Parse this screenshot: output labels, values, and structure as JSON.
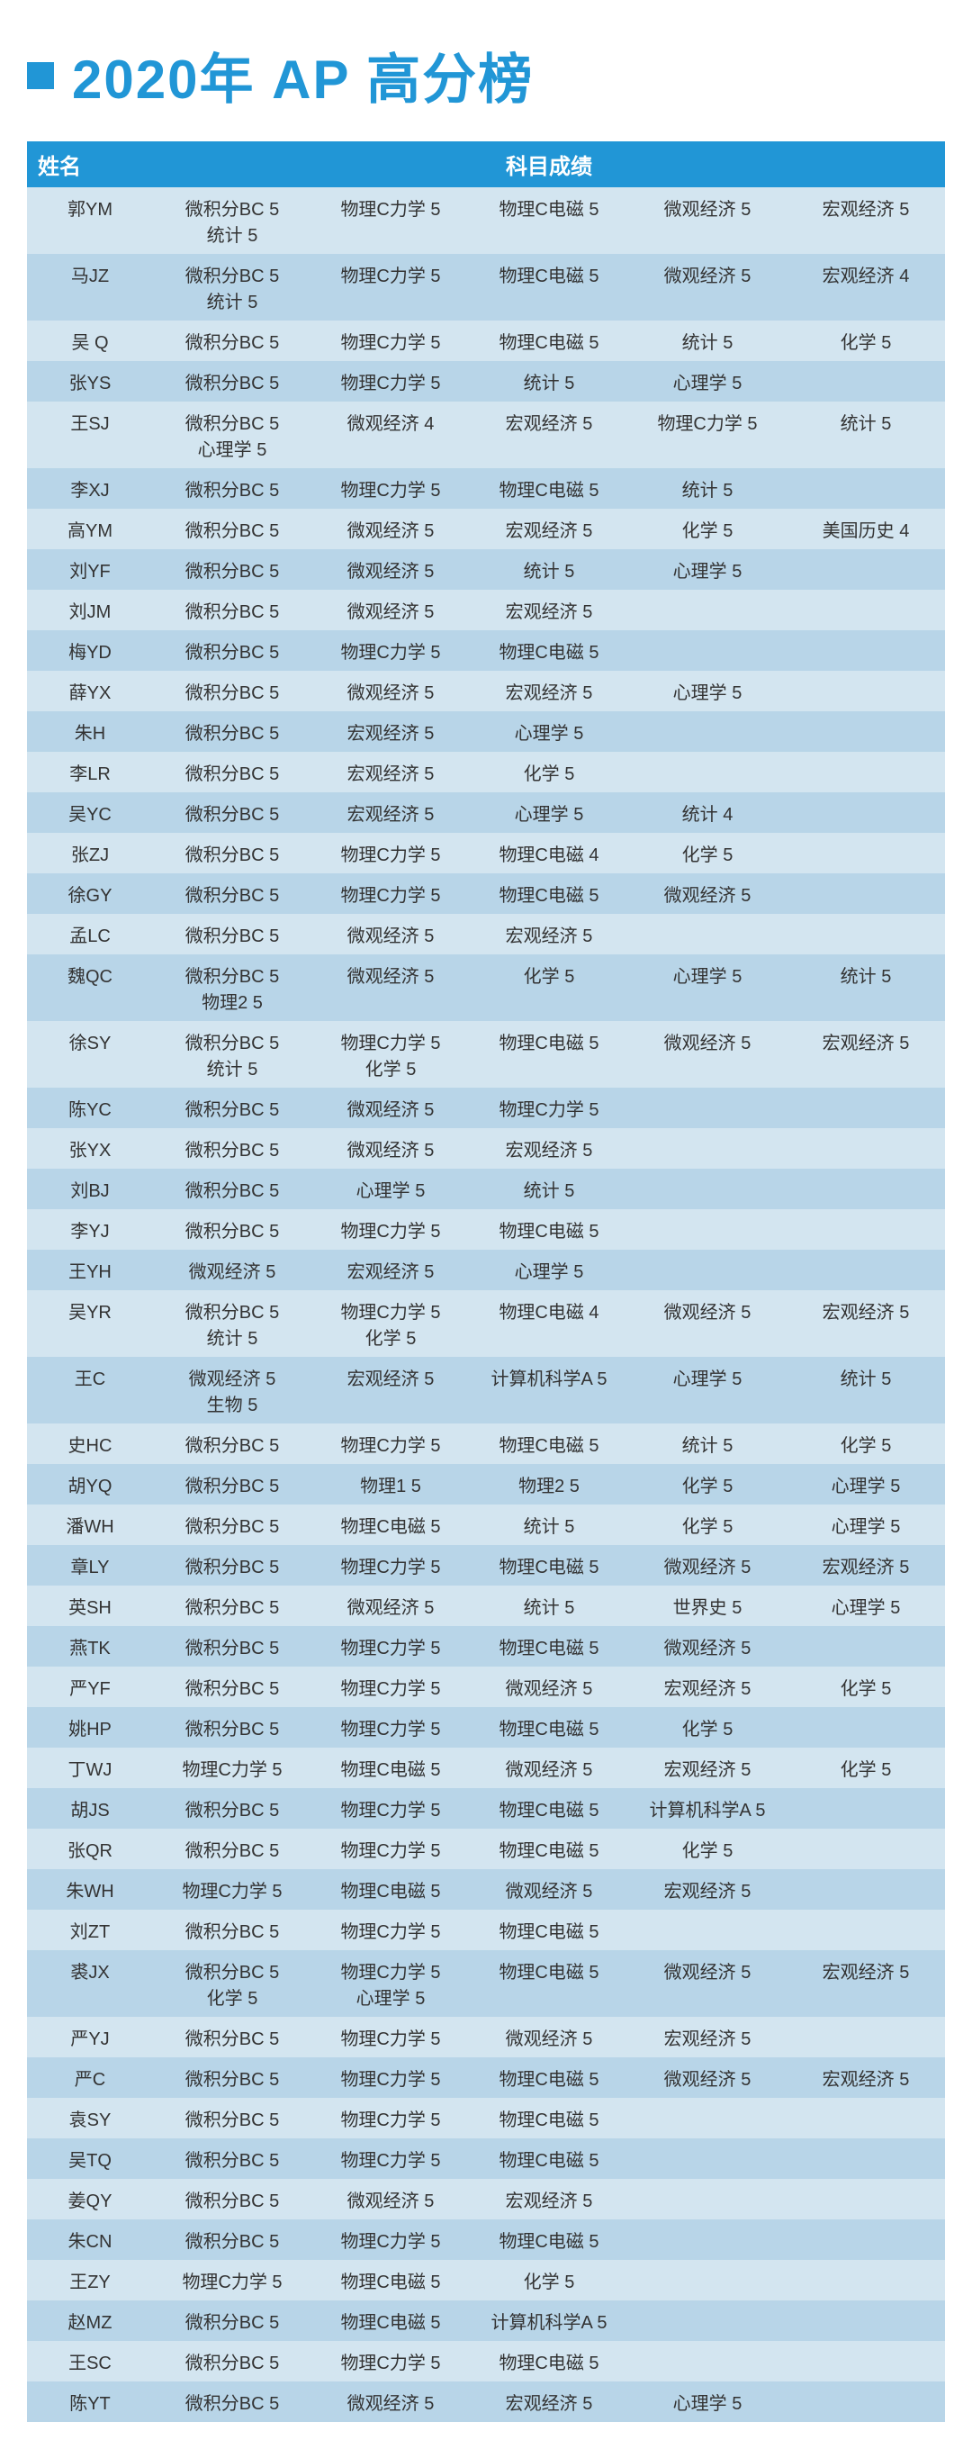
{
  "title": "2020年 AP 高分榜",
  "colors": {
    "accent": "#2196d6",
    "row_even": "#d3e5f0",
    "row_odd": "#b8d5e8",
    "text": "#333333",
    "header_text": "#ffffff"
  },
  "headers": {
    "name": "姓名",
    "scores": "科目成绩"
  },
  "rows": [
    {
      "name": "郭YM",
      "cols": [
        [
          "微积分BC 5",
          "统计 5"
        ],
        [
          "物理C力学 5"
        ],
        [
          "物理C电磁 5"
        ],
        [
          "微观经济 5"
        ],
        [
          "宏观经济 5"
        ]
      ]
    },
    {
      "name": "马JZ",
      "cols": [
        [
          "微积分BC 5",
          "统计 5"
        ],
        [
          "物理C力学 5"
        ],
        [
          "物理C电磁 5"
        ],
        [
          "微观经济 5"
        ],
        [
          "宏观经济 4"
        ]
      ]
    },
    {
      "name": "吴 Q",
      "cols": [
        [
          "微积分BC 5"
        ],
        [
          "物理C力学 5"
        ],
        [
          "物理C电磁 5"
        ],
        [
          "统计 5"
        ],
        [
          "化学 5"
        ]
      ]
    },
    {
      "name": "张YS",
      "cols": [
        [
          "微积分BC 5"
        ],
        [
          "物理C力学 5"
        ],
        [
          "统计 5"
        ],
        [
          "心理学 5"
        ],
        [
          ""
        ]
      ]
    },
    {
      "name": "王SJ",
      "cols": [
        [
          "微积分BC 5",
          "心理学 5"
        ],
        [
          "微观经济 4"
        ],
        [
          "宏观经济 5"
        ],
        [
          "物理C力学 5"
        ],
        [
          "统计 5"
        ]
      ]
    },
    {
      "name": "李XJ",
      "cols": [
        [
          "微积分BC 5"
        ],
        [
          "物理C力学 5"
        ],
        [
          "物理C电磁 5"
        ],
        [
          "统计 5"
        ],
        [
          ""
        ]
      ]
    },
    {
      "name": "高YM",
      "cols": [
        [
          "微积分BC 5"
        ],
        [
          "微观经济 5"
        ],
        [
          "宏观经济 5"
        ],
        [
          "化学 5"
        ],
        [
          "美国历史 4"
        ]
      ]
    },
    {
      "name": "刘YF",
      "cols": [
        [
          "微积分BC 5"
        ],
        [
          "微观经济 5"
        ],
        [
          "统计 5"
        ],
        [
          "心理学 5"
        ],
        [
          ""
        ]
      ]
    },
    {
      "name": "刘JM",
      "cols": [
        [
          "微积分BC 5"
        ],
        [
          "微观经济 5"
        ],
        [
          "宏观经济 5"
        ],
        [
          ""
        ],
        [
          ""
        ]
      ]
    },
    {
      "name": "梅YD",
      "cols": [
        [
          "微积分BC 5"
        ],
        [
          "物理C力学 5"
        ],
        [
          "物理C电磁 5"
        ],
        [
          ""
        ],
        [
          ""
        ]
      ]
    },
    {
      "name": "薛YX",
      "cols": [
        [
          "微积分BC 5"
        ],
        [
          "微观经济 5"
        ],
        [
          "宏观经济 5"
        ],
        [
          "心理学 5"
        ],
        [
          ""
        ]
      ]
    },
    {
      "name": "朱H",
      "cols": [
        [
          "微积分BC 5"
        ],
        [
          "宏观经济 5"
        ],
        [
          "心理学 5"
        ],
        [
          ""
        ],
        [
          ""
        ]
      ]
    },
    {
      "name": "李LR",
      "cols": [
        [
          "微积分BC 5"
        ],
        [
          "宏观经济 5"
        ],
        [
          "化学 5"
        ],
        [
          ""
        ],
        [
          ""
        ]
      ]
    },
    {
      "name": "吴YC",
      "cols": [
        [
          "微积分BC 5"
        ],
        [
          "宏观经济 5"
        ],
        [
          "心理学 5"
        ],
        [
          "统计 4"
        ],
        [
          ""
        ]
      ]
    },
    {
      "name": "张ZJ",
      "cols": [
        [
          "微积分BC 5"
        ],
        [
          "物理C力学 5"
        ],
        [
          "物理C电磁 4"
        ],
        [
          "化学 5"
        ],
        [
          ""
        ]
      ]
    },
    {
      "name": "徐GY",
      "cols": [
        [
          "微积分BC 5"
        ],
        [
          "物理C力学 5"
        ],
        [
          "物理C电磁 5"
        ],
        [
          "微观经济 5"
        ],
        [
          ""
        ]
      ]
    },
    {
      "name": "孟LC",
      "cols": [
        [
          "微积分BC 5"
        ],
        [
          "微观经济 5"
        ],
        [
          "宏观经济 5"
        ],
        [
          ""
        ],
        [
          ""
        ]
      ]
    },
    {
      "name": "魏QC",
      "cols": [
        [
          "微积分BC 5",
          "物理2 5"
        ],
        [
          "微观经济 5"
        ],
        [
          "化学 5"
        ],
        [
          "心理学 5"
        ],
        [
          "统计 5"
        ]
      ]
    },
    {
      "name": "徐SY",
      "cols": [
        [
          "微积分BC 5",
          "统计 5"
        ],
        [
          "物理C力学 5",
          "化学 5"
        ],
        [
          "物理C电磁 5"
        ],
        [
          "微观经济 5"
        ],
        [
          "宏观经济 5"
        ]
      ]
    },
    {
      "name": "陈YC",
      "cols": [
        [
          "微积分BC 5"
        ],
        [
          "微观经济 5"
        ],
        [
          "物理C力学 5"
        ],
        [
          ""
        ],
        [
          ""
        ]
      ]
    },
    {
      "name": "张YX",
      "cols": [
        [
          "微积分BC 5"
        ],
        [
          "微观经济 5"
        ],
        [
          "宏观经济 5"
        ],
        [
          ""
        ],
        [
          ""
        ]
      ]
    },
    {
      "name": "刘BJ",
      "cols": [
        [
          "微积分BC 5"
        ],
        [
          "心理学 5"
        ],
        [
          "统计 5"
        ],
        [
          ""
        ],
        [
          ""
        ]
      ]
    },
    {
      "name": "李YJ",
      "cols": [
        [
          "微积分BC 5"
        ],
        [
          "物理C力学 5"
        ],
        [
          "物理C电磁 5"
        ],
        [
          ""
        ],
        [
          ""
        ]
      ]
    },
    {
      "name": "王YH",
      "cols": [
        [
          "微观经济 5"
        ],
        [
          "宏观经济 5"
        ],
        [
          "心理学 5"
        ],
        [
          ""
        ],
        [
          ""
        ]
      ]
    },
    {
      "name": "吴YR",
      "cols": [
        [
          "微积分BC 5",
          "统计 5"
        ],
        [
          "物理C力学 5",
          "化学 5"
        ],
        [
          "物理C电磁 4"
        ],
        [
          "微观经济 5"
        ],
        [
          "宏观经济 5"
        ]
      ]
    },
    {
      "name": "王C",
      "cols": [
        [
          "微观经济 5",
          "生物 5"
        ],
        [
          "宏观经济 5"
        ],
        [
          "计算机科学A 5"
        ],
        [
          "心理学 5"
        ],
        [
          "统计 5"
        ]
      ]
    },
    {
      "name": "史HC",
      "cols": [
        [
          "微积分BC 5"
        ],
        [
          "物理C力学 5"
        ],
        [
          "物理C电磁 5"
        ],
        [
          "统计 5"
        ],
        [
          "化学 5"
        ]
      ]
    },
    {
      "name": "胡YQ",
      "cols": [
        [
          "微积分BC 5"
        ],
        [
          "物理1 5"
        ],
        [
          "物理2 5"
        ],
        [
          "化学 5"
        ],
        [
          "心理学 5"
        ]
      ]
    },
    {
      "name": "潘WH",
      "cols": [
        [
          "微积分BC 5"
        ],
        [
          "物理C电磁 5"
        ],
        [
          "统计 5"
        ],
        [
          "化学 5"
        ],
        [
          "心理学 5"
        ]
      ]
    },
    {
      "name": "章LY",
      "cols": [
        [
          "微积分BC 5"
        ],
        [
          "物理C力学 5"
        ],
        [
          "物理C电磁 5"
        ],
        [
          "微观经济 5"
        ],
        [
          "宏观经济 5"
        ]
      ]
    },
    {
      "name": "英SH",
      "cols": [
        [
          "微积分BC 5"
        ],
        [
          "微观经济 5"
        ],
        [
          "统计 5"
        ],
        [
          "世界史 5"
        ],
        [
          "心理学 5"
        ]
      ]
    },
    {
      "name": "燕TK",
      "cols": [
        [
          "微积分BC 5"
        ],
        [
          "物理C力学 5"
        ],
        [
          "物理C电磁 5"
        ],
        [
          "微观经济 5"
        ],
        [
          ""
        ]
      ]
    },
    {
      "name": "严YF",
      "cols": [
        [
          "微积分BC 5"
        ],
        [
          "物理C力学 5"
        ],
        [
          "微观经济 5"
        ],
        [
          "宏观经济 5"
        ],
        [
          "化学 5"
        ]
      ]
    },
    {
      "name": "姚HP",
      "cols": [
        [
          "微积分BC 5"
        ],
        [
          "物理C力学 5"
        ],
        [
          "物理C电磁 5"
        ],
        [
          "化学 5"
        ],
        [
          ""
        ]
      ]
    },
    {
      "name": "丁WJ",
      "cols": [
        [
          "物理C力学 5"
        ],
        [
          "物理C电磁 5"
        ],
        [
          "微观经济 5"
        ],
        [
          "宏观经济 5"
        ],
        [
          "化学 5"
        ]
      ]
    },
    {
      "name": "胡JS",
      "cols": [
        [
          "微积分BC 5"
        ],
        [
          "物理C力学 5"
        ],
        [
          "物理C电磁 5"
        ],
        [
          "计算机科学A 5"
        ],
        [
          ""
        ]
      ]
    },
    {
      "name": "张QR",
      "cols": [
        [
          "微积分BC 5"
        ],
        [
          "物理C力学 5"
        ],
        [
          "物理C电磁 5"
        ],
        [
          "化学 5"
        ],
        [
          ""
        ]
      ]
    },
    {
      "name": "朱WH",
      "cols": [
        [
          "物理C力学 5"
        ],
        [
          "物理C电磁 5"
        ],
        [
          "微观经济 5"
        ],
        [
          "宏观经济 5"
        ],
        [
          ""
        ]
      ]
    },
    {
      "name": "刘ZT",
      "cols": [
        [
          "微积分BC 5"
        ],
        [
          "物理C力学 5"
        ],
        [
          "物理C电磁 5"
        ],
        [
          ""
        ],
        [
          ""
        ]
      ]
    },
    {
      "name": "裘JX",
      "cols": [
        [
          "微积分BC 5",
          "化学 5"
        ],
        [
          "物理C力学 5",
          "心理学 5"
        ],
        [
          "物理C电磁 5"
        ],
        [
          "微观经济 5"
        ],
        [
          "宏观经济 5"
        ]
      ]
    },
    {
      "name": "严YJ",
      "cols": [
        [
          "微积分BC 5"
        ],
        [
          "物理C力学 5"
        ],
        [
          "微观经济 5"
        ],
        [
          "宏观经济 5"
        ],
        [
          ""
        ]
      ]
    },
    {
      "name": "严C",
      "cols": [
        [
          "微积分BC 5"
        ],
        [
          "物理C力学 5"
        ],
        [
          "物理C电磁 5"
        ],
        [
          "微观经济 5"
        ],
        [
          "宏观经济 5"
        ]
      ]
    },
    {
      "name": "袁SY",
      "cols": [
        [
          "微积分BC 5"
        ],
        [
          "物理C力学 5"
        ],
        [
          "物理C电磁 5"
        ],
        [
          ""
        ],
        [
          ""
        ]
      ]
    },
    {
      "name": "吴TQ",
      "cols": [
        [
          "微积分BC 5"
        ],
        [
          "物理C力学 5"
        ],
        [
          "物理C电磁 5"
        ],
        [
          ""
        ],
        [
          ""
        ]
      ]
    },
    {
      "name": "姜QY",
      "cols": [
        [
          "微积分BC 5"
        ],
        [
          "微观经济 5"
        ],
        [
          "宏观经济 5"
        ],
        [
          ""
        ],
        [
          ""
        ]
      ]
    },
    {
      "name": "朱CN",
      "cols": [
        [
          "微积分BC 5"
        ],
        [
          "物理C力学 5"
        ],
        [
          "物理C电磁 5"
        ],
        [
          ""
        ],
        [
          ""
        ]
      ]
    },
    {
      "name": "王ZY",
      "cols": [
        [
          "物理C力学 5"
        ],
        [
          "物理C电磁 5"
        ],
        [
          "化学 5"
        ],
        [
          ""
        ],
        [
          ""
        ]
      ]
    },
    {
      "name": "赵MZ",
      "cols": [
        [
          "微积分BC 5"
        ],
        [
          "物理C电磁 5"
        ],
        [
          "计算机科学A 5"
        ],
        [
          ""
        ],
        [
          ""
        ]
      ]
    },
    {
      "name": "王SC",
      "cols": [
        [
          "微积分BC 5"
        ],
        [
          "物理C力学 5"
        ],
        [
          "物理C电磁 5"
        ],
        [
          ""
        ],
        [
          ""
        ]
      ]
    },
    {
      "name": "陈YT",
      "cols": [
        [
          "微积分BC 5"
        ],
        [
          "微观经济 5"
        ],
        [
          "宏观经济 5"
        ],
        [
          "心理学 5"
        ],
        [
          ""
        ]
      ]
    }
  ]
}
